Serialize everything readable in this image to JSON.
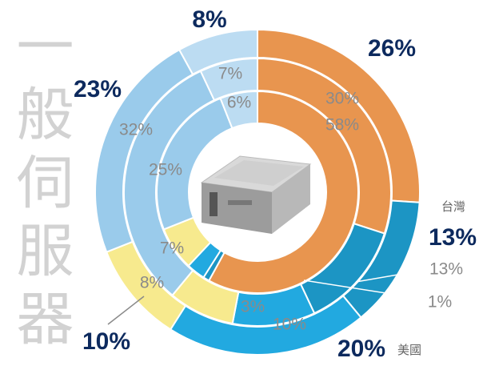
{
  "chart_data": {
    "type": "donut",
    "title": "一般伺服器",
    "categories": [
      null,
      "台灣",
      "美國",
      null,
      null,
      null
    ],
    "colors": [
      "#E8954F",
      "#1C95C4",
      "#22A9E0",
      "#F7EA8E",
      "#9ACBEB",
      "#BCDCF2"
    ],
    "series": [
      {
        "values": [
          26,
          13,
          20,
          10,
          23,
          8
        ],
        "value_labels": [
          "26%",
          "13%",
          "20%",
          "10%",
          "23%",
          "8%"
        ]
      },
      {
        "values": [
          30,
          13,
          10,
          8,
          32,
          7
        ],
        "value_labels": [
          "30%",
          "13%",
          "10%",
          "8%",
          "32%",
          "7%"
        ]
      },
      {
        "values": [
          58,
          1,
          3,
          7,
          25,
          6
        ],
        "value_labels": [
          "58%",
          "1%",
          "3%",
          "7%",
          "25%",
          "6%"
        ]
      }
    ]
  }
}
